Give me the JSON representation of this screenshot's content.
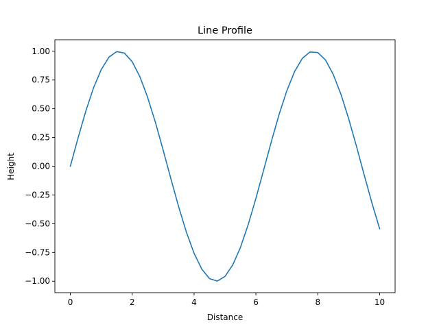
{
  "chart_data": {
    "type": "line",
    "title": "Line Profile",
    "xlabel": "Distance",
    "ylabel": "Height",
    "xlim": [
      -0.5,
      10.5
    ],
    "ylim": [
      -1.1,
      1.1
    ],
    "xticks": [
      0,
      2,
      4,
      6,
      8,
      10
    ],
    "xtick_labels": [
      "0",
      "2",
      "4",
      "6",
      "8",
      "10"
    ],
    "yticks": [
      -1.0,
      -0.75,
      -0.5,
      -0.25,
      0.0,
      0.25,
      0.5,
      0.75,
      1.0
    ],
    "ytick_labels": [
      "−1.00",
      "−0.75",
      "−0.50",
      "−0.25",
      "0.00",
      "0.25",
      "0.50",
      "0.75",
      "1.00"
    ],
    "grid": false,
    "series": [
      {
        "color": "#1f77b4",
        "x": [
          0,
          0.25,
          0.5,
          0.75,
          1.0,
          1.25,
          1.5,
          1.75,
          2.0,
          2.25,
          2.5,
          2.75,
          3.0,
          3.25,
          3.5,
          3.75,
          4.0,
          4.25,
          4.5,
          4.75,
          5.0,
          5.25,
          5.5,
          5.75,
          6.0,
          6.25,
          6.5,
          6.75,
          7.0,
          7.25,
          7.5,
          7.75,
          8.0,
          8.25,
          8.5,
          8.75,
          9.0,
          9.25,
          9.5,
          9.75,
          10.0
        ],
        "y": [
          0.0,
          0.247,
          0.479,
          0.682,
          0.841,
          0.949,
          0.997,
          0.984,
          0.909,
          0.778,
          0.598,
          0.382,
          0.141,
          -0.108,
          -0.351,
          -0.572,
          -0.757,
          -0.895,
          -0.978,
          -0.999,
          -0.959,
          -0.859,
          -0.706,
          -0.508,
          -0.279,
          -0.033,
          0.215,
          0.451,
          0.657,
          0.823,
          0.938,
          0.994,
          0.989,
          0.924,
          0.798,
          0.625,
          0.412,
          0.174,
          -0.075,
          -0.319,
          -0.544
        ]
      }
    ]
  }
}
